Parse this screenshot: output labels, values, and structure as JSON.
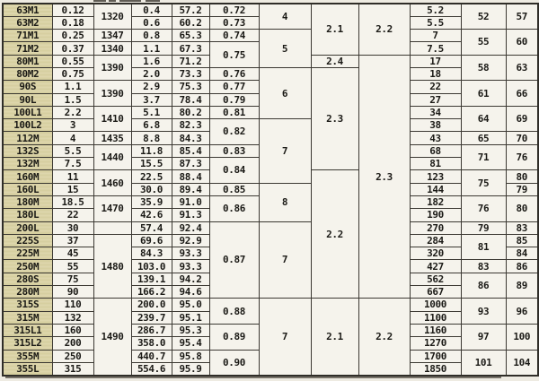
{
  "theme": {
    "paper": "#eeebe2",
    "cell_bg": "#f5f3ec",
    "frame_col_bg": "#d9d2a6",
    "border": "#3b3832",
    "text": "#1b1a16"
  },
  "table": {
    "columns": [
      "frame",
      "power",
      "speed",
      "current",
      "efficiency",
      "power-factor",
      "ratio-a",
      "ratio-b",
      "ratio-c",
      "weight",
      "noise-1",
      "noise-2"
    ],
    "rows": [
      [
        [
          "63M1"
        ],
        [
          "0.12"
        ],
        [
          "1320",
          2
        ],
        [
          "0.4"
        ],
        [
          "57.2"
        ],
        [
          "0.72"
        ],
        [
          "4",
          2
        ],
        [
          "2.1",
          4
        ],
        [
          "2.2",
          4
        ],
        [
          "5.2"
        ],
        [
          "52",
          2
        ],
        [
          "57",
          2
        ]
      ],
      [
        [
          "63M2"
        ],
        [
          "0.18"
        ],
        [
          "0.6"
        ],
        [
          "60.2"
        ],
        [
          "0.73"
        ],
        [
          "5.5"
        ]
      ],
      [
        [
          "71M1"
        ],
        [
          "0.25"
        ],
        [
          "1347"
        ],
        [
          "0.8"
        ],
        [
          "65.3"
        ],
        [
          "0.74"
        ],
        [
          "5",
          3
        ],
        [
          "7"
        ],
        [
          "55",
          2
        ],
        [
          "60",
          2
        ]
      ],
      [
        [
          "71M2"
        ],
        [
          "0.37"
        ],
        [
          "1340"
        ],
        [
          "1.1"
        ],
        [
          "67.3"
        ],
        [
          "0.75",
          2
        ],
        [
          "7.5"
        ]
      ],
      [
        [
          "80M1"
        ],
        [
          "0.55"
        ],
        [
          "1390",
          2
        ],
        [
          "1.6"
        ],
        [
          "71.2"
        ],
        [
          "2.4"
        ],
        [
          "2.3",
          19
        ],
        [
          "17"
        ],
        [
          "58",
          2
        ],
        [
          "63",
          2
        ]
      ],
      [
        [
          "80M2"
        ],
        [
          "0.75"
        ],
        [
          "2.0"
        ],
        [
          "73.3"
        ],
        [
          "0.76"
        ],
        [
          "6",
          4
        ],
        [
          "2.3",
          8
        ],
        [
          "18"
        ]
      ],
      [
        [
          "90S"
        ],
        [
          "1.1"
        ],
        [
          "1390",
          2
        ],
        [
          "2.9"
        ],
        [
          "75.3"
        ],
        [
          "0.77"
        ],
        [
          "22"
        ],
        [
          "61",
          2
        ],
        [
          "66",
          2
        ]
      ],
      [
        [
          "90L"
        ],
        [
          "1.5"
        ],
        [
          "3.7"
        ],
        [
          "78.4"
        ],
        [
          "0.79"
        ],
        [
          "27"
        ]
      ],
      [
        [
          "100L1"
        ],
        [
          "2.2"
        ],
        [
          "1410",
          2
        ],
        [
          "5.1"
        ],
        [
          "80.2"
        ],
        [
          "0.81"
        ],
        [
          "34"
        ],
        [
          "64",
          2
        ],
        [
          "69",
          2
        ]
      ],
      [
        [
          "100L2"
        ],
        [
          "3"
        ],
        [
          "6.8"
        ],
        [
          "82.3"
        ],
        [
          "0.82",
          2
        ],
        [
          "7",
          5
        ],
        [
          "38"
        ]
      ],
      [
        [
          "112M"
        ],
        [
          "4"
        ],
        [
          "1435"
        ],
        [
          "8.8"
        ],
        [
          "84.3"
        ],
        [
          "43"
        ],
        [
          "65"
        ],
        [
          "70"
        ]
      ],
      [
        [
          "132S"
        ],
        [
          "5.5"
        ],
        [
          "1440",
          2
        ],
        [
          "11.8"
        ],
        [
          "85.4"
        ],
        [
          "0.83"
        ],
        [
          "68"
        ],
        [
          "71",
          2
        ],
        [
          "76",
          2
        ]
      ],
      [
        [
          "132M"
        ],
        [
          "7.5"
        ],
        [
          "15.5"
        ],
        [
          "87.3"
        ],
        [
          "0.84",
          2
        ],
        [
          "81"
        ]
      ],
      [
        [
          "160M"
        ],
        [
          "11"
        ],
        [
          "1460",
          2
        ],
        [
          "22.5"
        ],
        [
          "88.4"
        ],
        [
          "2.2",
          10
        ],
        [
          "123"
        ],
        [
          "75",
          2
        ],
        [
          "80"
        ]
      ],
      [
        [
          "160L"
        ],
        [
          "15"
        ],
        [
          "30.0"
        ],
        [
          "89.4"
        ],
        [
          "0.85"
        ],
        [
          "8",
          3
        ],
        [
          "144"
        ],
        [
          "79"
        ]
      ],
      [
        [
          "180M"
        ],
        [
          "18.5"
        ],
        [
          "1470",
          2
        ],
        [
          "35.9"
        ],
        [
          "91.0"
        ],
        [
          "0.86",
          2
        ],
        [
          "182"
        ],
        [
          "76",
          2
        ],
        [
          "80",
          2
        ]
      ],
      [
        [
          "180L"
        ],
        [
          "22"
        ],
        [
          "42.6"
        ],
        [
          "91.3"
        ],
        [
          "190"
        ]
      ],
      [
        [
          "200L"
        ],
        [
          "30"
        ],
        [
          ""
        ],
        [
          "57.4"
        ],
        [
          "92.4"
        ],
        [
          "0.87",
          6
        ],
        [
          "7",
          6
        ],
        [
          "270"
        ],
        [
          "79"
        ],
        [
          "83"
        ]
      ],
      [
        [
          "225S"
        ],
        [
          "37"
        ],
        [
          "1480",
          5
        ],
        [
          "69.6"
        ],
        [
          "92.9"
        ],
        [
          "284"
        ],
        [
          "81",
          2
        ],
        [
          "85"
        ]
      ],
      [
        [
          "225M"
        ],
        [
          "45"
        ],
        [
          "84.3"
        ],
        [
          "93.3"
        ],
        [
          "320"
        ],
        [
          "84"
        ]
      ],
      [
        [
          "250M"
        ],
        [
          "55"
        ],
        [
          "103.0"
        ],
        [
          "93.3"
        ],
        [
          "427"
        ],
        [
          "83"
        ],
        [
          "86"
        ]
      ],
      [
        [
          "280S"
        ],
        [
          "75"
        ],
        [
          "139.1"
        ],
        [
          "94.2"
        ],
        [
          "562"
        ],
        [
          "86",
          2
        ],
        [
          "89",
          2
        ]
      ],
      [
        [
          "280M"
        ],
        [
          "90"
        ],
        [
          "166.2"
        ],
        [
          "94.6"
        ],
        [
          "667"
        ]
      ],
      [
        [
          "315S"
        ],
        [
          "110"
        ],
        [
          "1490",
          6
        ],
        [
          "200.0"
        ],
        [
          "95.0"
        ],
        [
          "0.88",
          2
        ],
        [
          "7",
          6
        ],
        [
          "2.1",
          6
        ],
        [
          "2.2",
          6
        ],
        [
          "1000"
        ],
        [
          "93",
          2
        ],
        [
          "96",
          2
        ]
      ],
      [
        [
          "315M"
        ],
        [
          "132"
        ],
        [
          "239.7"
        ],
        [
          "95.1"
        ],
        [
          "1100"
        ]
      ],
      [
        [
          "315L1"
        ],
        [
          "160"
        ],
        [
          "286.7"
        ],
        [
          "95.3"
        ],
        [
          "0.89",
          2
        ],
        [
          "1160"
        ],
        [
          "97",
          2
        ],
        [
          "100",
          2
        ]
      ],
      [
        [
          "315L2"
        ],
        [
          "200"
        ],
        [
          "358.0"
        ],
        [
          "95.4"
        ],
        [
          "1270"
        ]
      ],
      [
        [
          "355M"
        ],
        [
          "250"
        ],
        [
          "440.7"
        ],
        [
          "95.8"
        ],
        [
          "0.90",
          2
        ],
        [
          "1700"
        ],
        [
          "101",
          2
        ],
        [
          "104",
          2
        ]
      ],
      [
        [
          "355L"
        ],
        [
          "315"
        ],
        [
          "554.6"
        ],
        [
          "95.9"
        ],
        [
          "1850"
        ]
      ]
    ]
  }
}
